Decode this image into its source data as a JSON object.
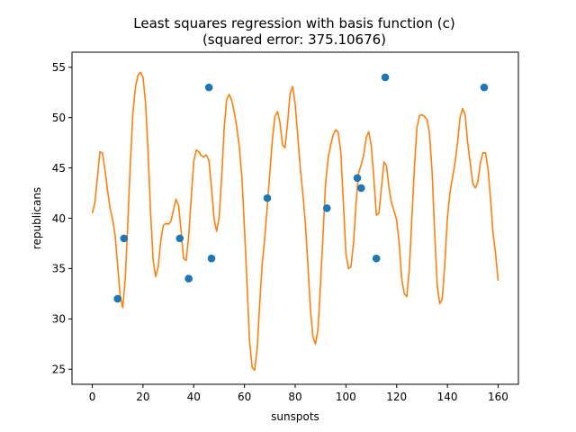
{
  "chart_data": {
    "type": "scatter",
    "title": "Least squares regression with basis function (c)",
    "subtitle": "(squared error: 375.10676)",
    "xlabel": "sunspots",
    "ylabel": "republicans",
    "xlim": [
      -8,
      168
    ],
    "ylim": [
      23.5,
      56.5
    ],
    "xticks": [
      0,
      20,
      40,
      60,
      80,
      100,
      120,
      140,
      160
    ],
    "yticks": [
      25,
      30,
      35,
      40,
      45,
      50,
      55
    ],
    "grid": false,
    "colors": {
      "points": "#1f77b4",
      "fit": "#ff7f0e"
    },
    "points": [
      {
        "x": 10,
        "y": 32
      },
      {
        "x": 12.5,
        "y": 38
      },
      {
        "x": 34.5,
        "y": 38
      },
      {
        "x": 38,
        "y": 34
      },
      {
        "x": 46,
        "y": 53
      },
      {
        "x": 47,
        "y": 36
      },
      {
        "x": 69,
        "y": 42
      },
      {
        "x": 92.5,
        "y": 41
      },
      {
        "x": 104.5,
        "y": 44
      },
      {
        "x": 106,
        "y": 43
      },
      {
        "x": 112,
        "y": 36
      },
      {
        "x": 115.5,
        "y": 54
      },
      {
        "x": 154.5,
        "y": 53
      }
    ],
    "fit_line": [
      [
        0,
        40.5
      ],
      [
        1,
        41.5
      ],
      [
        2,
        44
      ],
      [
        3,
        46.6
      ],
      [
        4,
        46.5
      ],
      [
        5,
        44.8
      ],
      [
        6,
        42.8
      ],
      [
        7,
        41
      ],
      [
        8,
        39.9
      ],
      [
        9,
        38.3
      ],
      [
        10,
        35.3
      ],
      [
        11,
        32.3
      ],
      [
        12,
        31.1
      ],
      [
        13,
        34
      ],
      [
        14,
        39.5
      ],
      [
        15,
        45.5
      ],
      [
        16,
        50.4
      ],
      [
        17,
        53
      ],
      [
        18,
        54.2
      ],
      [
        19,
        54.5
      ],
      [
        20,
        54
      ],
      [
        21,
        51.5
      ],
      [
        22,
        46.5
      ],
      [
        23,
        40.5
      ],
      [
        24,
        35.8
      ],
      [
        25,
        34.2
      ],
      [
        26,
        35.2
      ],
      [
        27,
        37.8
      ],
      [
        28,
        39.3
      ],
      [
        29,
        39.5
      ],
      [
        30,
        39.4
      ],
      [
        31,
        39.7
      ],
      [
        32,
        40.8
      ],
      [
        33,
        41.9
      ],
      [
        34,
        41.3
      ],
      [
        35,
        38.8
      ],
      [
        36,
        36
      ],
      [
        37,
        35.8
      ],
      [
        38,
        38.2
      ],
      [
        39,
        42
      ],
      [
        40,
        45.6
      ],
      [
        41,
        46.8
      ],
      [
        42,
        46.6
      ],
      [
        43,
        46.2
      ],
      [
        44,
        46.1
      ],
      [
        45,
        46.3
      ],
      [
        46,
        45.7
      ],
      [
        47,
        43
      ],
      [
        48,
        40
      ],
      [
        49,
        38.7
      ],
      [
        50,
        40
      ],
      [
        51,
        44
      ],
      [
        52,
        49
      ],
      [
        53,
        51.8
      ],
      [
        54,
        52.3
      ],
      [
        55,
        51.7
      ],
      [
        56,
        50.5
      ],
      [
        57,
        49
      ],
      [
        58,
        47
      ],
      [
        59,
        44
      ],
      [
        60,
        39
      ],
      [
        61,
        33.5
      ],
      [
        62,
        27.8
      ],
      [
        63,
        25.2
      ],
      [
        64,
        24.9
      ],
      [
        65,
        27
      ],
      [
        66,
        31.5
      ],
      [
        67,
        35.5
      ],
      [
        68,
        38
      ],
      [
        69,
        41.2
      ],
      [
        70,
        44.5
      ],
      [
        71,
        47.8
      ],
      [
        72,
        50.1
      ],
      [
        73,
        50.6
      ],
      [
        74,
        49.5
      ],
      [
        75,
        47.3
      ],
      [
        76,
        47
      ],
      [
        77,
        49.5
      ],
      [
        78,
        52.4
      ],
      [
        79,
        53.1
      ],
      [
        80,
        51.3
      ],
      [
        81,
        48.2
      ],
      [
        82,
        45
      ],
      [
        83,
        42.5
      ],
      [
        84,
        39.5
      ],
      [
        85,
        35.5
      ],
      [
        86,
        31
      ],
      [
        87,
        28.2
      ],
      [
        88,
        27.5
      ],
      [
        89,
        29
      ],
      [
        90,
        33.5
      ],
      [
        91,
        38.5
      ],
      [
        92,
        43.5
      ],
      [
        93,
        46
      ],
      [
        94,
        47.3
      ],
      [
        95,
        48.3
      ],
      [
        96,
        48.8
      ],
      [
        97,
        48.5
      ],
      [
        98,
        46.5
      ],
      [
        99,
        41.5
      ],
      [
        100,
        36.5
      ],
      [
        101,
        35
      ],
      [
        102,
        35.2
      ],
      [
        103,
        37.5
      ],
      [
        104,
        41.5
      ],
      [
        105,
        44.5
      ],
      [
        106,
        45.3
      ],
      [
        107,
        46.3
      ],
      [
        108,
        48
      ],
      [
        109,
        48.6
      ],
      [
        110,
        47.2
      ],
      [
        111,
        44
      ],
      [
        112,
        40.3
      ],
      [
        113,
        40.5
      ],
      [
        114,
        43
      ],
      [
        115,
        45.6
      ],
      [
        116,
        45.2
      ],
      [
        117,
        43
      ],
      [
        118,
        41.5
      ],
      [
        119,
        40.7
      ],
      [
        120,
        39.8
      ],
      [
        121,
        37.5
      ],
      [
        122,
        34
      ],
      [
        123,
        32.5
      ],
      [
        124,
        32.2
      ],
      [
        125,
        35
      ],
      [
        126,
        40
      ],
      [
        127,
        45
      ],
      [
        128,
        49
      ],
      [
        129,
        50.2
      ],
      [
        130,
        50.3
      ],
      [
        131,
        50.1
      ],
      [
        132,
        49.8
      ],
      [
        133,
        48.3
      ],
      [
        134,
        44.5
      ],
      [
        135,
        38.5
      ],
      [
        136,
        33.3
      ],
      [
        137,
        31.5
      ],
      [
        138,
        32
      ],
      [
        139,
        35.5
      ],
      [
        140,
        40
      ],
      [
        141,
        42.5
      ],
      [
        142,
        44
      ],
      [
        143,
        45.5
      ],
      [
        144,
        47.5
      ],
      [
        145,
        50
      ],
      [
        146,
        50.9
      ],
      [
        147,
        50.3
      ],
      [
        148,
        47.5
      ],
      [
        149,
        45.5
      ],
      [
        150,
        43.5
      ],
      [
        151,
        43
      ],
      [
        152,
        43.6
      ],
      [
        153,
        45.5
      ],
      [
        154,
        46.5
      ],
      [
        155,
        46.5
      ],
      [
        156,
        45
      ],
      [
        157,
        42
      ],
      [
        158,
        38.5
      ],
      [
        159,
        36.5
      ],
      [
        160,
        33.8
      ]
    ]
  }
}
